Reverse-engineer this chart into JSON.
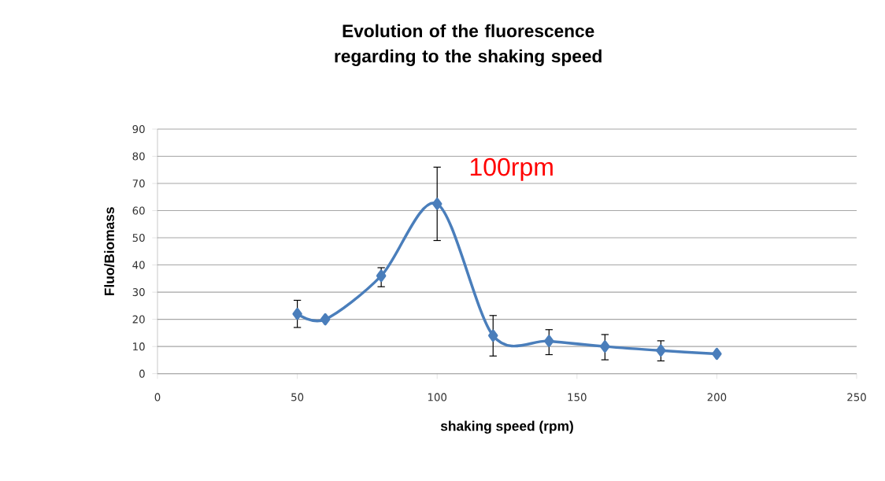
{
  "chart_data": {
    "type": "line",
    "title": "Evolution of the fluorescence regarding to the shaking speed",
    "xlabel": "shaking speed (rpm)",
    "ylabel": "Fluo/Biomass",
    "x": [
      50,
      60,
      80,
      100,
      120,
      140,
      160,
      180,
      200
    ],
    "series": [
      {
        "color": "#4a7ebb",
        "values": [
          22,
          20,
          36,
          62.5,
          14,
          12,
          10,
          8.5,
          7.3
        ],
        "errors": [
          [
            17,
            27
          ],
          null,
          [
            32,
            39
          ],
          [
            49,
            76
          ],
          [
            6.5,
            21.4
          ],
          [
            7,
            16.2
          ],
          [
            5.1,
            14.4
          ],
          [
            4.7,
            12.1
          ],
          null
        ]
      }
    ],
    "xlim": [
      0,
      250
    ],
    "xticks": [
      0,
      50,
      100,
      150,
      200,
      250
    ],
    "ylim": [
      0,
      90
    ],
    "yticks": [
      0,
      10,
      20,
      30,
      40,
      50,
      60,
      70,
      80,
      90
    ],
    "grid": "y",
    "marker": "diamond",
    "line_style": "solid",
    "annotations": [
      "100rpm"
    ]
  }
}
